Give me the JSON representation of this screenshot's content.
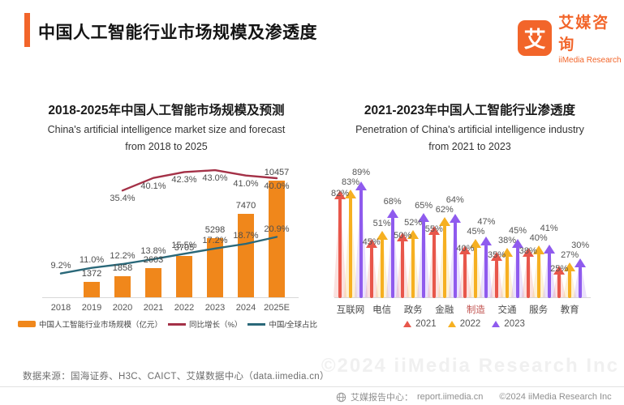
{
  "header": {
    "title": "中国人工智能行业市场规模及渗透度"
  },
  "logo": {
    "glyph": "艾",
    "brand_cn": "艾媒咨询",
    "brand_en": "iiMedia Research",
    "accent_color": "#F2652A"
  },
  "chart_data": [
    {
      "type": "bar",
      "subtype": "bar-line-combo",
      "title": "2018-2025年中国人工智能市场规模及预测",
      "subtitle1": "China's artificial intelligence market size and forecast",
      "subtitle2": "from 2018 to 2025",
      "categories": [
        "2018",
        "2019",
        "2020",
        "2021",
        "2022",
        "2023",
        "2024",
        "2025E"
      ],
      "bars": {
        "name": "中国人工智能行业市场规模（亿元）",
        "color": "#F0871B",
        "values": [
          null,
          1372,
          1858,
          2603,
          3705,
          5298,
          7470,
          10457
        ]
      },
      "line_yoy": {
        "name": "同比增长（%）",
        "color": "#A43147",
        "values": [
          null,
          null,
          35.4,
          40.1,
          42.3,
          43.0,
          41.0,
          40.0
        ],
        "labels": [
          null,
          null,
          "35.4%",
          "40.1%",
          "42.3%",
          "43.0%",
          "41.0%",
          "40.0%"
        ]
      },
      "line_share": {
        "name": "中国/全球占比",
        "color": "#2A6879",
        "values": [
          9.2,
          11.0,
          12.2,
          13.8,
          15.5,
          17.2,
          18.7,
          20.9
        ],
        "labels": [
          "9.2%",
          "11.0%",
          "12.2%",
          "13.8%",
          "15.5%",
          "17.2%",
          "18.7%",
          "20.9%"
        ]
      },
      "ylim": [
        0,
        12000
      ],
      "grid": false,
      "legend_position": "bottom"
    },
    {
      "type": "bar",
      "subtype": "arrow-markers",
      "title": "2021-2023年中国人工智能行业渗透度",
      "subtitle1": "Penetration of China's artificial intelligence industry",
      "subtitle2": "from 2021 to 2023",
      "categories": [
        "互联网",
        "电信",
        "政务",
        "金融",
        "制造",
        "交通",
        "服务",
        "教育"
      ],
      "highlight_category_index": 4,
      "highlight_category_color": "#C0504D",
      "unit": "%",
      "series": [
        {
          "name": "2021",
          "color": "#E8574B",
          "values": [
            82,
            45,
            50,
            55,
            40,
            35,
            38,
            25
          ]
        },
        {
          "name": "2022",
          "color": "#F6B021",
          "values": [
            83,
            51,
            52,
            62,
            45,
            38,
            40,
            27
          ]
        },
        {
          "name": "2023",
          "color": "#8F5BEE",
          "values": [
            89,
            68,
            65,
            64,
            47,
            45,
            41,
            30
          ]
        }
      ],
      "ylim": [
        0,
        100
      ],
      "grid": false,
      "legend_position": "bottom"
    }
  ],
  "source": "数据来源：国海证券、H3C、CAICT、艾媒数据中心（data.iimedia.cn）",
  "footer": {
    "report_center_label": "艾媒报告中心：",
    "report_center_url": "report.iimedia.cn",
    "copyright": "©2024 iiMedia Research Inc",
    "watermark": "©2024 iiMedia Research Inc"
  }
}
